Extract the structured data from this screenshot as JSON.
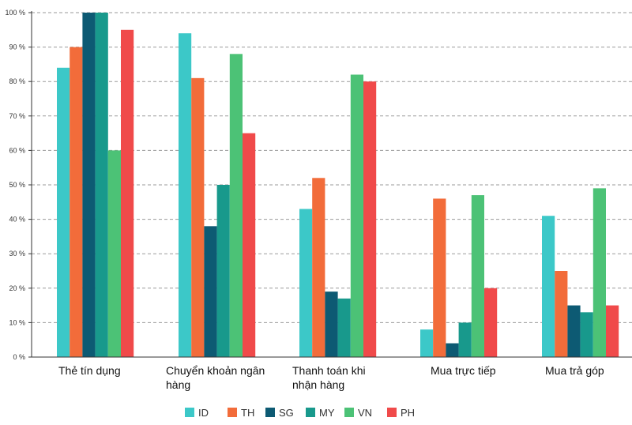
{
  "chart_data": {
    "type": "bar",
    "title": "",
    "xlabel": "",
    "ylabel": "",
    "ylim": [
      0,
      100
    ],
    "y_ticks": [
      "0 %",
      "10 %",
      "20 %",
      "30 %",
      "40 %",
      "50 %",
      "60 %",
      "70 %",
      "80 %",
      "90 %",
      "100 %"
    ],
    "grid": true,
    "legend_position": "bottom",
    "categories": [
      [
        "Thẻ tín dụng"
      ],
      [
        "Chuyển khoản ngân",
        "hàng"
      ],
      [
        "Thanh toán khi",
        "nhận hàng"
      ],
      [
        "Mua trực tiếp"
      ],
      [
        "Mua trả góp"
      ]
    ],
    "series": [
      {
        "name": "ID",
        "color": "#3cc8c8",
        "values": [
          84,
          94,
          43,
          8,
          41
        ]
      },
      {
        "name": "TH",
        "color": "#f26c3a",
        "values": [
          90,
          81,
          52,
          46,
          25
        ]
      },
      {
        "name": "SG",
        "color": "#0d5a73",
        "values": [
          100,
          38,
          19,
          4,
          15
        ]
      },
      {
        "name": "MY",
        "color": "#18998c",
        "values": [
          100,
          50,
          17,
          10,
          13
        ]
      },
      {
        "name": "VN",
        "color": "#4cc276",
        "values": [
          60,
          88,
          82,
          47,
          49
        ]
      },
      {
        "name": "PH",
        "color": "#f04a4a",
        "values": [
          95,
          65,
          80,
          20,
          15
        ]
      }
    ]
  }
}
